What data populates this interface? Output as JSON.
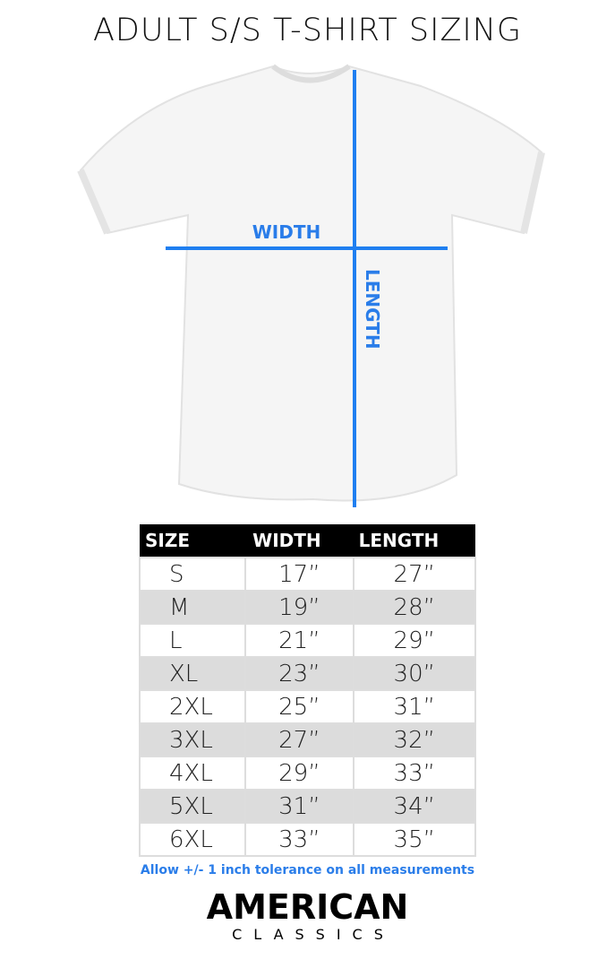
{
  "title": "ADULT S/S T-SHIRT SIZING",
  "diagram": {
    "width_label": "WIDTH",
    "length_label": "LENGTH",
    "line_color": "#1f7ff0"
  },
  "table": {
    "headers": [
      "SIZE",
      "WIDTH",
      "LENGTH"
    ],
    "rows": [
      [
        "S",
        "17”",
        "27”"
      ],
      [
        "M",
        "19”",
        "28”"
      ],
      [
        "L",
        "21”",
        "29”"
      ],
      [
        "XL",
        "23”",
        "30”"
      ],
      [
        "2XL",
        "25”",
        "31”"
      ],
      [
        "3XL",
        "27”",
        "32”"
      ],
      [
        "4XL",
        "29”",
        "33”"
      ],
      [
        "5XL",
        "31”",
        "34”"
      ],
      [
        "6XL",
        "33”",
        "35”"
      ]
    ]
  },
  "note": "Allow +/- 1 inch tolerance on all measurements",
  "logo": {
    "line1": "AMERICAN",
    "line2": "CLASSICS"
  }
}
